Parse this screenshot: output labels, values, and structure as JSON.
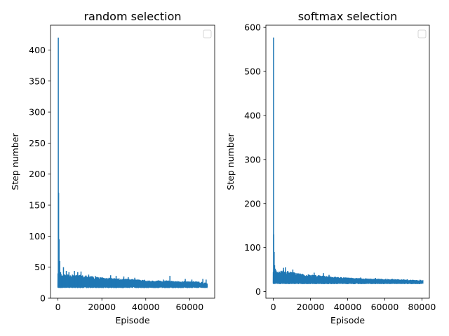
{
  "chart_data": [
    {
      "type": "line",
      "title": "random selection",
      "xlabel": "Episode",
      "ylabel": "Step number",
      "xlim": [
        -3400,
        71400
      ],
      "ylim": [
        0,
        440
      ],
      "xticks": [
        0,
        20000,
        40000,
        60000
      ],
      "xtick_labels": [
        "0",
        "20000",
        "40000",
        "60000"
      ],
      "yticks": [
        0,
        50,
        100,
        150,
        200,
        250,
        300,
        350,
        400
      ],
      "ytick_labels": [
        "0",
        "50",
        "100",
        "150",
        "200",
        "250",
        "300",
        "350",
        "400"
      ],
      "grid": false,
      "legend": "top-right, empty",
      "color": "#1f77b4",
      "series": [
        {
          "band": {
            "x": [
              0,
              2000,
              5000,
              10000,
              15000,
              20000,
              25000,
              30000,
              35000,
              40000,
              45000,
              50000,
              55000,
              60000,
              65000,
              68000
            ],
            "y_low": [
              17,
              17,
              17,
              17,
              17,
              17,
              17,
              17,
              17,
              17,
              17,
              17,
              17,
              17,
              17,
              17
            ],
            "y_high": [
              40,
              38,
              38,
              37,
              35,
              33,
              32,
              31,
              30,
              29,
              28,
              28,
              27,
              27,
              26,
              24
            ]
          },
          "spikes": {
            "x": [
              0,
              150,
              300,
              500,
              800,
              1200,
              2500,
              3800,
              5000,
              7500,
              9000,
              10500,
              14000,
              17000,
              24000,
              26500,
              30000,
              32000,
              35000,
              48000,
              51000,
              58000,
              61000,
              66000,
              67500
            ],
            "y": [
              40,
              420,
              170,
              95,
              60,
              42,
              50,
              44,
              42,
              44,
              42,
              43,
              38,
              36,
              37,
              36,
              35,
              34,
              33,
              30,
              36,
              31,
              30,
              31,
              30
            ]
          }
        }
      ]
    },
    {
      "type": "line",
      "title": "softmax selection",
      "xlabel": "Episode",
      "ylabel": "Step number",
      "xlim": [
        -4000,
        84000
      ],
      "ylim": [
        -15,
        605
      ],
      "xticks": [
        0,
        20000,
        40000,
        60000,
        80000
      ],
      "xtick_labels": [
        "0",
        "20000",
        "40000",
        "60000",
        "80000"
      ],
      "yticks": [
        0,
        100,
        200,
        300,
        400,
        500,
        600
      ],
      "ytick_labels": [
        "0",
        "100",
        "200",
        "300",
        "400",
        "500",
        "600"
      ],
      "grid": false,
      "legend": "top-right, empty",
      "color": "#1f77b4",
      "series": [
        {
          "band": {
            "x": [
              0,
              2000,
              5000,
              10000,
              15000,
              20000,
              25000,
              30000,
              40000,
              50000,
              60000,
              70000,
              80000
            ],
            "y_low": [
              18,
              18,
              18,
              18,
              18,
              18,
              18,
              18,
              18,
              18,
              18,
              18,
              18
            ],
            "y_high": [
              48,
              45,
              48,
              44,
              40,
              38,
              36,
              34,
              31,
              29,
              28,
              27,
              25
            ]
          },
          "spikes": {
            "x": [
              0,
              120,
              250,
              450,
              700,
              1000,
              1500,
              5500,
              6500,
              10500,
              22000,
              27000,
              30000,
              47000,
              55000,
              64000,
              72000,
              79000,
              80500
            ],
            "y": [
              45,
              577,
              130,
              90,
              60,
              52,
              48,
              54,
              55,
              50,
              43,
              42,
              38,
              32,
              31,
              29,
              28,
              27,
              26
            ]
          }
        }
      ]
    }
  ]
}
